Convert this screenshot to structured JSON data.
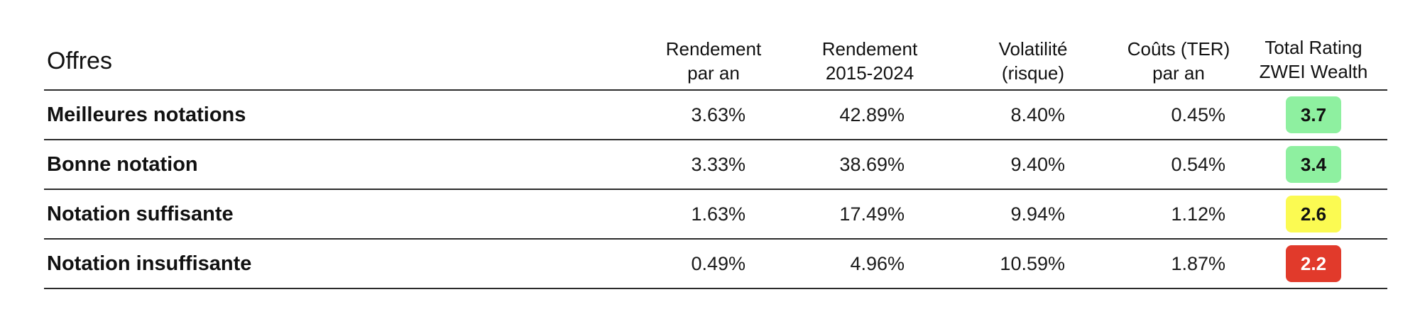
{
  "chart_data": {
    "type": "table",
    "columns": [
      {
        "key": "offres",
        "lines": [
          "Offres"
        ]
      },
      {
        "key": "rendement_an",
        "lines": [
          "Rendement",
          "par an"
        ]
      },
      {
        "key": "rendement_periode",
        "lines": [
          "Rendement",
          "2015-2024"
        ]
      },
      {
        "key": "volatilite",
        "lines": [
          "Volatilité",
          "(risque)"
        ]
      },
      {
        "key": "couts",
        "lines": [
          "Coûts (TER)",
          "par an"
        ]
      },
      {
        "key": "rating",
        "lines": [
          "Total Rating",
          "ZWEI Wealth"
        ]
      }
    ],
    "rows": [
      {
        "label": "Meilleures notations",
        "rendement_an": "3.63%",
        "rendement_periode": "42.89%",
        "volatilite": "8.40%",
        "couts": "0.45%",
        "rating": "3.7",
        "rating_bg": "#8ef0a0",
        "rating_fg": "#111111"
      },
      {
        "label": "Bonne notation",
        "rendement_an": "3.33%",
        "rendement_periode": "38.69%",
        "volatilite": "9.40%",
        "couts": "0.54%",
        "rating": "3.4",
        "rating_bg": "#8ef0a0",
        "rating_fg": "#111111"
      },
      {
        "label": "Notation suffisante",
        "rendement_an": "1.63%",
        "rendement_periode": "17.49%",
        "volatilite": "9.94%",
        "couts": "1.12%",
        "rating": "2.6",
        "rating_bg": "#fbfa52",
        "rating_fg": "#111111"
      },
      {
        "label": "Notation insuffisante",
        "rendement_an": "0.49%",
        "rendement_periode": "4.96%",
        "volatilite": "10.59%",
        "couts": "1.87%",
        "rating": "2.2",
        "rating_bg": "#e13a2b",
        "rating_fg": "#ffffff"
      }
    ]
  }
}
